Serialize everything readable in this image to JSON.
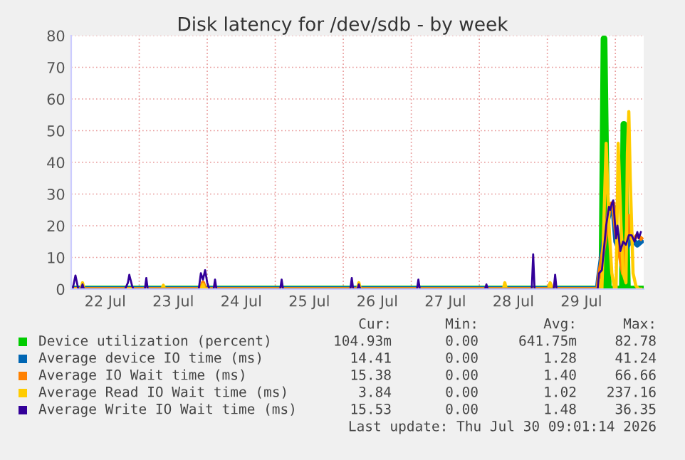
{
  "chart_data": {
    "type": "line",
    "title": "Disk latency for /dev/sdb - by week",
    "xlim": [
      "2026-07-22T00:00",
      "2026-07-30T10:00"
    ],
    "xticks": [
      {
        "value": "2026-07-22T12:00",
        "label": "22 Jul"
      },
      {
        "value": "2026-07-23T12:00",
        "label": "23 Jul"
      },
      {
        "value": "2026-07-24T12:00",
        "label": "24 Jul"
      },
      {
        "value": "2026-07-25T12:00",
        "label": "25 Jul"
      },
      {
        "value": "2026-07-26T12:00",
        "label": "26 Jul"
      },
      {
        "value": "2026-07-27T12:00",
        "label": "27 Jul"
      },
      {
        "value": "2026-07-28T12:00",
        "label": "28 Jul"
      },
      {
        "value": "2026-07-29T12:00",
        "label": "29 Jul"
      }
    ],
    "ylim": [
      0,
      80
    ],
    "yticks": [
      0,
      10,
      20,
      30,
      40,
      50,
      60,
      70,
      80
    ],
    "grid": true,
    "legend": "bottom",
    "marker": "none",
    "line_style": "solid",
    "series": [
      {
        "name": "Device utilization (percent)",
        "color": "#00cc00",
        "x": [
          "2026-07-22T00:00",
          "2026-07-29T19:15",
          "2026-07-29T20:00",
          "2026-07-29T20:45",
          "2026-07-29T21:30",
          "2026-07-30T02:30",
          "2026-07-30T03:00",
          "2026-07-30T03:45",
          "2026-07-30T04:15",
          "2026-07-30T09:00"
        ],
        "values": [
          0,
          0,
          79,
          30,
          0,
          0,
          52,
          20,
          0,
          0
        ]
      },
      {
        "name": "Average device IO time (ms)",
        "color": "#0066b3",
        "x": [
          "2026-07-22T00:00",
          "2026-07-29T17:45",
          "2026-07-29T18:15",
          "2026-07-29T20:45",
          "2026-07-29T21:45",
          "2026-07-29T23:15",
          "2026-07-30T00:15",
          "2026-07-30T01:45",
          "2026-07-30T02:45",
          "2026-07-30T03:45",
          "2026-07-30T05:45",
          "2026-07-30T07:45",
          "2026-07-30T09:00"
        ],
        "values": [
          0,
          0,
          4,
          20,
          24,
          26,
          15,
          12,
          14,
          13,
          16,
          14,
          15
        ]
      },
      {
        "name": "Average IO Wait time (ms)",
        "color": "#ff8000",
        "x": [
          "2026-07-22T00:00",
          "2026-07-23T21:45",
          "2026-07-23T22:30",
          "2026-07-23T23:15",
          "2026-07-29T00:30",
          "2026-07-29T01:00",
          "2026-07-29T01:30",
          "2026-07-29T17:45",
          "2026-07-29T18:15",
          "2026-07-29T20:45",
          "2026-07-29T21:45",
          "2026-07-29T22:45",
          "2026-07-29T23:15",
          "2026-07-30T00:15",
          "2026-07-30T01:45",
          "2026-07-30T02:45",
          "2026-07-30T03:45",
          "2026-07-30T04:45",
          "2026-07-30T05:15",
          "2026-07-30T05:45",
          "2026-07-30T06:45",
          "2026-07-30T07:45",
          "2026-07-30T09:00"
        ],
        "values": [
          0,
          0,
          2,
          0,
          0,
          1.5,
          0,
          0,
          4,
          18,
          25,
          27,
          27,
          18,
          10,
          5,
          15,
          23,
          20,
          16,
          16,
          17,
          16
        ]
      },
      {
        "name": "Average Read IO Wait time (ms)",
        "color": "#ffcc00",
        "x": [
          "2026-07-22T00:00",
          "2026-07-22T03:30",
          "2026-07-22T04:00",
          "2026-07-22T04:30",
          "2026-07-23T08:00",
          "2026-07-23T08:30",
          "2026-07-23T09:00",
          "2026-07-23T22:00",
          "2026-07-23T22:30",
          "2026-07-23T23:00",
          "2026-07-26T05:00",
          "2026-07-26T05:30",
          "2026-07-26T06:00",
          "2026-07-28T08:30",
          "2026-07-28T09:00",
          "2026-07-28T09:30",
          "2026-07-29T00:30",
          "2026-07-29T01:00",
          "2026-07-29T01:30",
          "2026-07-29T17:45",
          "2026-07-29T18:15",
          "2026-07-29T19:15",
          "2026-07-29T20:45",
          "2026-07-29T21:45",
          "2026-07-29T22:45",
          "2026-07-29T23:45",
          "2026-07-30T00:15",
          "2026-07-30T01:00",
          "2026-07-30T02:00",
          "2026-07-30T02:45",
          "2026-07-30T03:45",
          "2026-07-30T04:15",
          "2026-07-30T04:45",
          "2026-07-30T05:15",
          "2026-07-30T06:15",
          "2026-07-30T07:15",
          "2026-07-30T08:15",
          "2026-07-30T09:00"
        ],
        "values": [
          0,
          0,
          2,
          0,
          0,
          1.2,
          0,
          0,
          1.5,
          0,
          0,
          2,
          0,
          0,
          2,
          0,
          0,
          2,
          0,
          0,
          3,
          0,
          46,
          20,
          5,
          0,
          0,
          46,
          20,
          5,
          2,
          43,
          56,
          35,
          5,
          1,
          0,
          0
        ]
      },
      {
        "name": "Average Write IO Wait time (ms)",
        "color": "#330099",
        "x": [
          "2026-07-22T00:30",
          "2026-07-22T01:30",
          "2026-07-22T02:30",
          "2026-07-22T03:30",
          "2026-07-22T04:00",
          "2026-07-22T04:30",
          "2026-07-22T19:00",
          "2026-07-22T20:00",
          "2026-07-22T20:30",
          "2026-07-22T21:30",
          "2026-07-22T22:00",
          "2026-07-23T02:00",
          "2026-07-23T02:30",
          "2026-07-23T03:00",
          "2026-07-23T21:00",
          "2026-07-23T21:45",
          "2026-07-23T22:30",
          "2026-07-23T23:15",
          "2026-07-24T00:00",
          "2026-07-24T00:45",
          "2026-07-24T02:15",
          "2026-07-24T02:45",
          "2026-07-24T03:15",
          "2026-07-25T01:45",
          "2026-07-25T02:15",
          "2026-07-25T02:45",
          "2026-07-26T02:30",
          "2026-07-26T03:00",
          "2026-07-26T03:30",
          "2026-07-26T05:00",
          "2026-07-26T05:30",
          "2026-07-26T06:00",
          "2026-07-27T02:00",
          "2026-07-27T02:30",
          "2026-07-27T03:00",
          "2026-07-28T02:00",
          "2026-07-28T02:30",
          "2026-07-28T03:00",
          "2026-07-28T18:30",
          "2026-07-28T19:00",
          "2026-07-28T19:30",
          "2026-07-29T02:15",
          "2026-07-29T02:45",
          "2026-07-29T03:15",
          "2026-07-29T17:45",
          "2026-07-29T18:15",
          "2026-07-29T19:15",
          "2026-07-29T20:45",
          "2026-07-29T21:45",
          "2026-07-29T22:15",
          "2026-07-29T22:45",
          "2026-07-29T23:15",
          "2026-07-30T00:15",
          "2026-07-30T00:45",
          "2026-07-30T01:45",
          "2026-07-30T02:45",
          "2026-07-30T03:45",
          "2026-07-30T04:45",
          "2026-07-30T05:45",
          "2026-07-30T06:45",
          "2026-07-30T07:45",
          "2026-07-30T08:15",
          "2026-07-30T09:00"
        ],
        "values": [
          0,
          4.3,
          0,
          0,
          1.5,
          0,
          0,
          2,
          4.5,
          1,
          0,
          0,
          3.5,
          0,
          0,
          5,
          3,
          6,
          2,
          0,
          0,
          3,
          0,
          0,
          3,
          0,
          0,
          3.5,
          0,
          0,
          1.5,
          0,
          0,
          3,
          0,
          0,
          1.5,
          0,
          0,
          11,
          0,
          0,
          4.5,
          0,
          0,
          5,
          6,
          20,
          26,
          25,
          27,
          28,
          16,
          20,
          12,
          15,
          14,
          17,
          17,
          15,
          18,
          16,
          18
        ]
      }
    ],
    "annotations": [
      "Cur:",
      "Min:",
      "Avg:",
      "Max:",
      "104.93m",
      "0.00",
      "641.75m",
      "82.78",
      "14.41",
      "0.00",
      "1.28",
      "41.24",
      "15.38",
      "0.00",
      "1.40",
      "66.66",
      "3.84",
      "0.00",
      "1.02",
      "237.16",
      "15.53",
      "0.00",
      "1.48",
      "36.35",
      "Last update: Thu Jul 30 09:01:14 2026"
    ]
  }
}
